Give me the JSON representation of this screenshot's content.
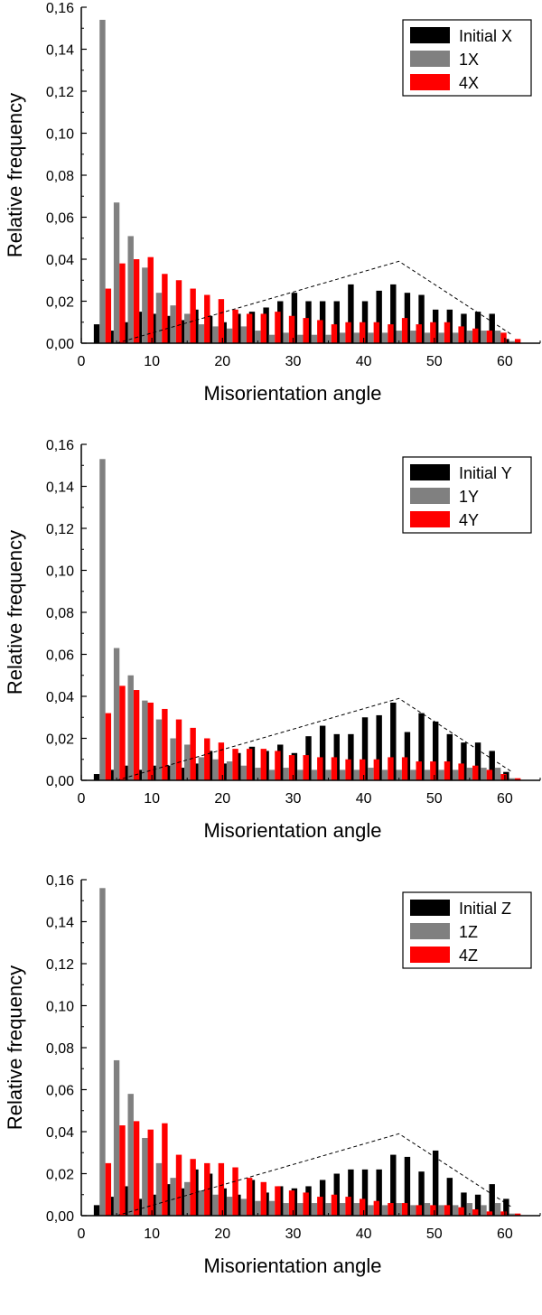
{
  "chart_data": [
    {
      "type": "bar",
      "xlabel": "Misorientation angle",
      "ylabel": "Relative frequency",
      "xlim": [
        0,
        65
      ],
      "ylim": [
        0,
        0.16
      ],
      "x_ticks": [
        "0",
        "10",
        "20",
        "30",
        "40",
        "50",
        "60"
      ],
      "y_ticks": [
        "0,00",
        "0,02",
        "0,04",
        "0,06",
        "0,08",
        "0,10",
        "0,12",
        "0,14",
        "0,16"
      ],
      "legend_position": "top-right",
      "grid": false,
      "bin_centers": [
        3,
        5,
        7,
        9,
        11,
        13,
        15,
        17,
        19,
        21,
        23,
        25,
        27,
        29,
        31,
        33,
        35,
        37,
        39,
        41,
        43,
        45,
        47,
        49,
        51,
        53,
        55,
        57,
        59,
        61
      ],
      "series": [
        {
          "name": "Initial X",
          "color": "#000000",
          "values": [
            0.009,
            0.006,
            0.01,
            0.015,
            0.014,
            0.013,
            0.011,
            0.016,
            0.013,
            0.01,
            0.014,
            0.015,
            0.017,
            0.02,
            0.024,
            0.02,
            0.02,
            0.02,
            0.028,
            0.02,
            0.025,
            0.028,
            0.024,
            0.023,
            0.016,
            0.016,
            0.014,
            0.015,
            0.014,
            0.002
          ]
        },
        {
          "name": "1X",
          "color": "#808080",
          "values": [
            0.154,
            0.067,
            0.051,
            0.036,
            0.024,
            0.018,
            0.014,
            0.009,
            0.008,
            0.007,
            0.008,
            0.006,
            0.004,
            0.005,
            0.004,
            0.004,
            0.004,
            0.005,
            0.005,
            0.005,
            0.005,
            0.006,
            0.006,
            0.005,
            0.005,
            0.005,
            0.006,
            0.006,
            0.006,
            0.001
          ]
        },
        {
          "name": "4X",
          "color": "#ff0000",
          "values": [
            0.026,
            0.038,
            0.04,
            0.041,
            0.033,
            0.03,
            0.026,
            0.023,
            0.021,
            0.016,
            0.014,
            0.014,
            0.015,
            0.013,
            0.012,
            0.011,
            0.009,
            0.01,
            0.01,
            0.01,
            0.009,
            0.012,
            0.009,
            0.01,
            0.01,
            0.008,
            0.007,
            0.006,
            0.005,
            0.002
          ]
        }
      ],
      "dashed_line": {
        "x": [
          5,
          45,
          61
        ],
        "y": [
          0,
          0.039,
          0.004
        ]
      }
    },
    {
      "type": "bar",
      "xlabel": "Misorientation angle",
      "ylabel": "Relative frequency",
      "xlim": [
        0,
        65
      ],
      "ylim": [
        0,
        0.16
      ],
      "x_ticks": [
        "0",
        "10",
        "20",
        "30",
        "40",
        "50",
        "60"
      ],
      "y_ticks": [
        "0,00",
        "0,02",
        "0,04",
        "0,06",
        "0,08",
        "0,10",
        "0,12",
        "0,14",
        "0,16"
      ],
      "legend_position": "top-right",
      "grid": false,
      "bin_centers": [
        3,
        5,
        7,
        9,
        11,
        13,
        15,
        17,
        19,
        21,
        23,
        25,
        27,
        29,
        31,
        33,
        35,
        37,
        39,
        41,
        43,
        45,
        47,
        49,
        51,
        53,
        55,
        57,
        59,
        61
      ],
      "series": [
        {
          "name": "Initial Y",
          "color": "#000000",
          "values": [
            0.003,
            0.005,
            0.007,
            0.005,
            0.007,
            0.007,
            0.006,
            0.008,
            0.014,
            0.008,
            0.013,
            0.016,
            0.014,
            0.017,
            0.013,
            0.021,
            0.026,
            0.022,
            0.022,
            0.03,
            0.031,
            0.037,
            0.023,
            0.032,
            0.028,
            0.022,
            0.018,
            0.018,
            0.014,
            0.004
          ]
        },
        {
          "name": "1Y",
          "color": "#808080",
          "values": [
            0.153,
            0.063,
            0.05,
            0.038,
            0.029,
            0.02,
            0.017,
            0.011,
            0.01,
            0.009,
            0.007,
            0.006,
            0.005,
            0.006,
            0.005,
            0.005,
            0.005,
            0.005,
            0.005,
            0.006,
            0.005,
            0.005,
            0.005,
            0.005,
            0.005,
            0.005,
            0.006,
            0.006,
            0.006,
            0.001
          ]
        },
        {
          "name": "4Y",
          "color": "#ff0000",
          "values": [
            0.032,
            0.045,
            0.043,
            0.037,
            0.034,
            0.029,
            0.025,
            0.02,
            0.018,
            0.015,
            0.015,
            0.015,
            0.014,
            0.012,
            0.012,
            0.011,
            0.011,
            0.01,
            0.01,
            0.01,
            0.011,
            0.011,
            0.009,
            0.009,
            0.009,
            0.008,
            0.007,
            0.005,
            0.003,
            0.001
          ]
        }
      ],
      "dashed_line": {
        "x": [
          5,
          45,
          61
        ],
        "y": [
          0,
          0.039,
          0.004
        ]
      }
    },
    {
      "type": "bar",
      "xlabel": "Misorientation angle",
      "ylabel": "Relative frequency",
      "xlim": [
        0,
        65
      ],
      "ylim": [
        0,
        0.16
      ],
      "x_ticks": [
        "0",
        "10",
        "20",
        "30",
        "40",
        "50",
        "60"
      ],
      "y_ticks": [
        "0,00",
        "0,02",
        "0,04",
        "0,06",
        "0,08",
        "0,10",
        "0,12",
        "0,14",
        "0,16"
      ],
      "legend_position": "top-right",
      "grid": false,
      "bin_centers": [
        3,
        5,
        7,
        9,
        11,
        13,
        15,
        17,
        19,
        21,
        23,
        25,
        27,
        29,
        31,
        33,
        35,
        37,
        39,
        41,
        43,
        45,
        47,
        49,
        51,
        53,
        55,
        57,
        59,
        61
      ],
      "series": [
        {
          "name": "Initial Z",
          "color": "#000000",
          "values": [
            0.005,
            0.009,
            0.014,
            0.008,
            0.01,
            0.015,
            0.013,
            0.022,
            0.02,
            0.013,
            0.01,
            0.017,
            0.011,
            0.014,
            0.013,
            0.014,
            0.017,
            0.02,
            0.022,
            0.022,
            0.022,
            0.029,
            0.028,
            0.021,
            0.031,
            0.018,
            0.011,
            0.01,
            0.015,
            0.008
          ]
        },
        {
          "name": "1Z",
          "color": "#808080",
          "values": [
            0.156,
            0.074,
            0.058,
            0.037,
            0.025,
            0.018,
            0.016,
            0.012,
            0.01,
            0.009,
            0.008,
            0.007,
            0.007,
            0.006,
            0.006,
            0.006,
            0.006,
            0.006,
            0.006,
            0.005,
            0.005,
            0.006,
            0.005,
            0.006,
            0.005,
            0.005,
            0.006,
            0.005,
            0.006,
            0.001
          ]
        },
        {
          "name": "4Z",
          "color": "#ff0000",
          "values": [
            0.025,
            0.043,
            0.045,
            0.041,
            0.044,
            0.029,
            0.027,
            0.025,
            0.025,
            0.023,
            0.018,
            0.016,
            0.014,
            0.012,
            0.011,
            0.009,
            0.01,
            0.009,
            0.008,
            0.007,
            0.006,
            0.006,
            0.005,
            0.005,
            0.005,
            0.004,
            0.003,
            0.002,
            0.002,
            0.001
          ]
        }
      ],
      "dashed_line": {
        "x": [
          5,
          45,
          61
        ],
        "y": [
          0,
          0.039,
          0.004
        ]
      }
    }
  ]
}
